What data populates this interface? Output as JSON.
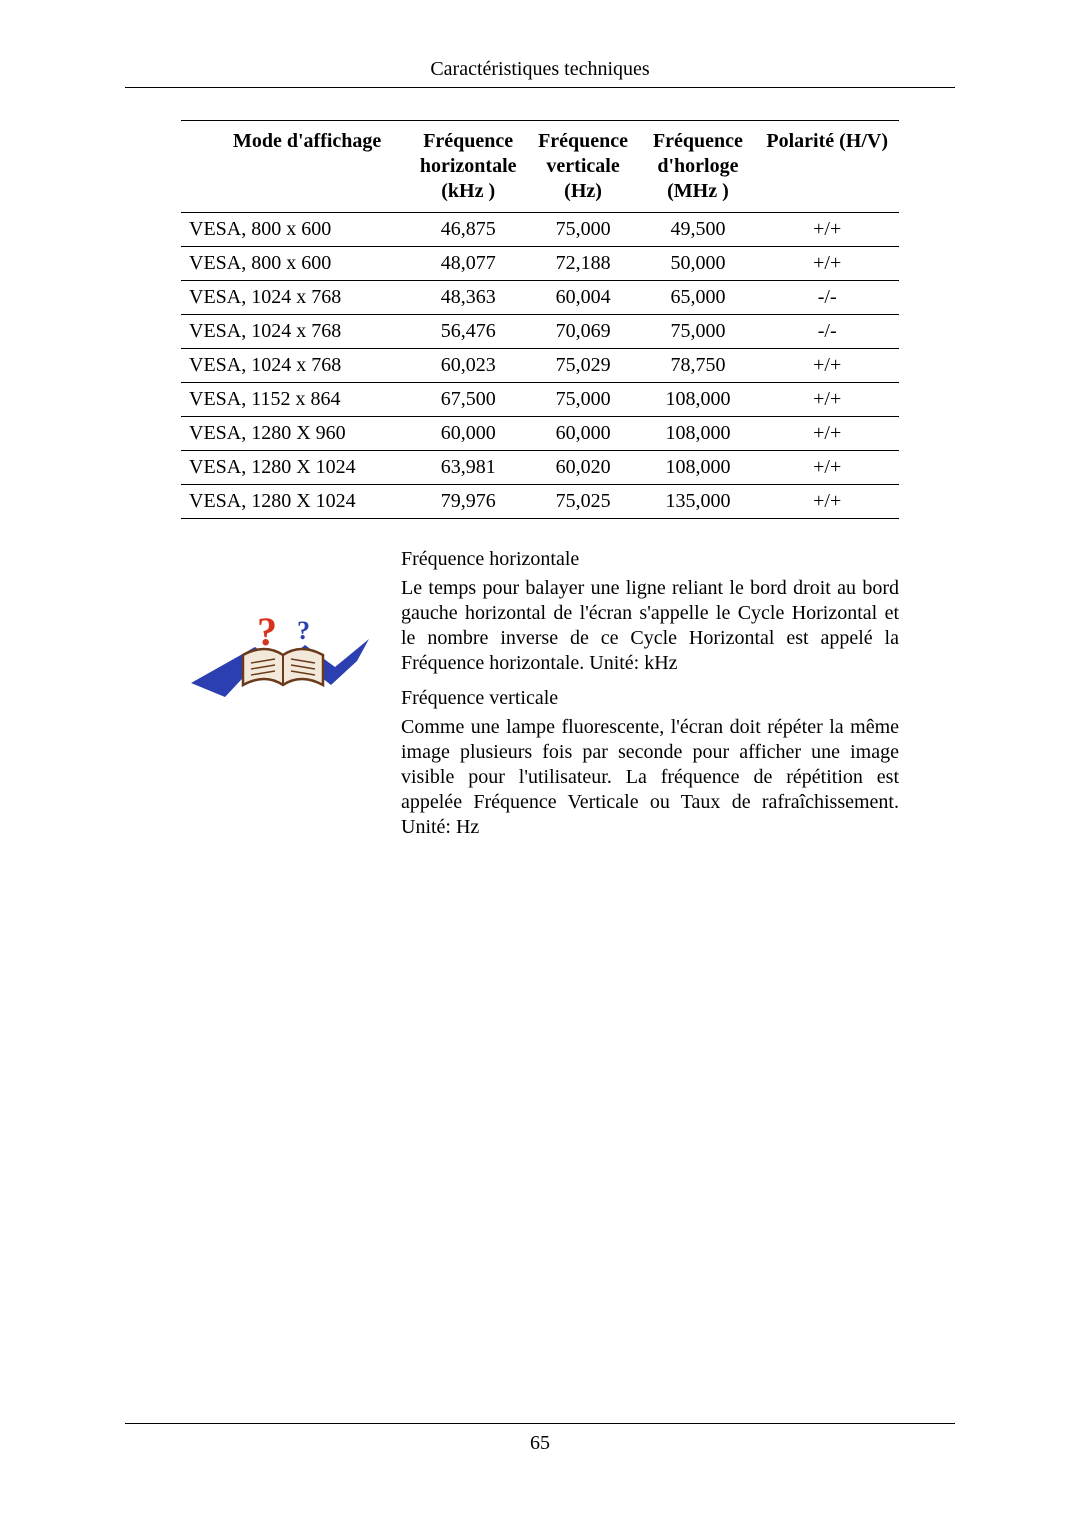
{
  "page": {
    "header": "Caractéristiques techniques",
    "number": "65"
  },
  "table": {
    "columns": {
      "mode": "Mode d'affichage",
      "hfreq": "Fréquence horizontale (kHz )",
      "vfreq": "Fréquence verticale (Hz)",
      "clock": "Fréquence d'horloge (MHz )",
      "polarity": "Polarité (H/V)"
    },
    "rows": [
      {
        "mode": "VESA, 800 x 600",
        "h": "46,875",
        "v": "75,000",
        "c": "49,500",
        "p": "+/+"
      },
      {
        "mode": "VESA, 800 x 600",
        "h": "48,077",
        "v": "72,188",
        "c": "50,000",
        "p": "+/+"
      },
      {
        "mode": "VESA, 1024 x 768",
        "h": "48,363",
        "v": "60,004",
        "c": "65,000",
        "p": "-/-"
      },
      {
        "mode": "VESA, 1024 x 768",
        "h": "56,476",
        "v": "70,069",
        "c": "75,000",
        "p": "-/-"
      },
      {
        "mode": "VESA, 1024 x 768",
        "h": "60,023",
        "v": "75,029",
        "c": "78,750",
        "p": "+/+"
      },
      {
        "mode": "VESA, 1152 x 864",
        "h": "67,500",
        "v": "75,000",
        "c": "108,000",
        "p": "+/+"
      },
      {
        "mode": "VESA, 1280 X 960",
        "h": "60,000",
        "v": "60,000",
        "c": "108,000",
        "p": "+/+"
      },
      {
        "mode": "VESA, 1280 X 1024",
        "h": "63,981",
        "v": "60,020",
        "c": "108,000",
        "p": "+/+"
      },
      {
        "mode": "VESA, 1280 X 1024",
        "h": "79,976",
        "v": "75,025",
        "c": "135,000",
        "p": "+/+"
      }
    ]
  },
  "info": {
    "hfreq_title": "Fréquence horizontale",
    "hfreq_body": "Le temps pour balayer une ligne reliant le bord droit au bord gauche horizontal de l'écran s'appelle le Cycle Horizontal et le nombre inverse de ce Cycle Horizontal est appelé la Fréquence horizontale. Unité: kHz",
    "vfreq_title": "Fréquence verticale",
    "vfreq_body": "Comme une lampe fluorescente, l'écran doit répéter la même image plusieurs fois par seconde pour afficher une image visible pour l'utilisateur. La fréquence de répétition est appelée Fréquence Verticale ou Taux de rafraîchissement. Unité: Hz"
  },
  "icon": {
    "swoosh_color": "#2b3fb0",
    "question_color": "#d9321f",
    "book_stroke": "#6a3a1a",
    "book_fill": "#f2e9da"
  }
}
